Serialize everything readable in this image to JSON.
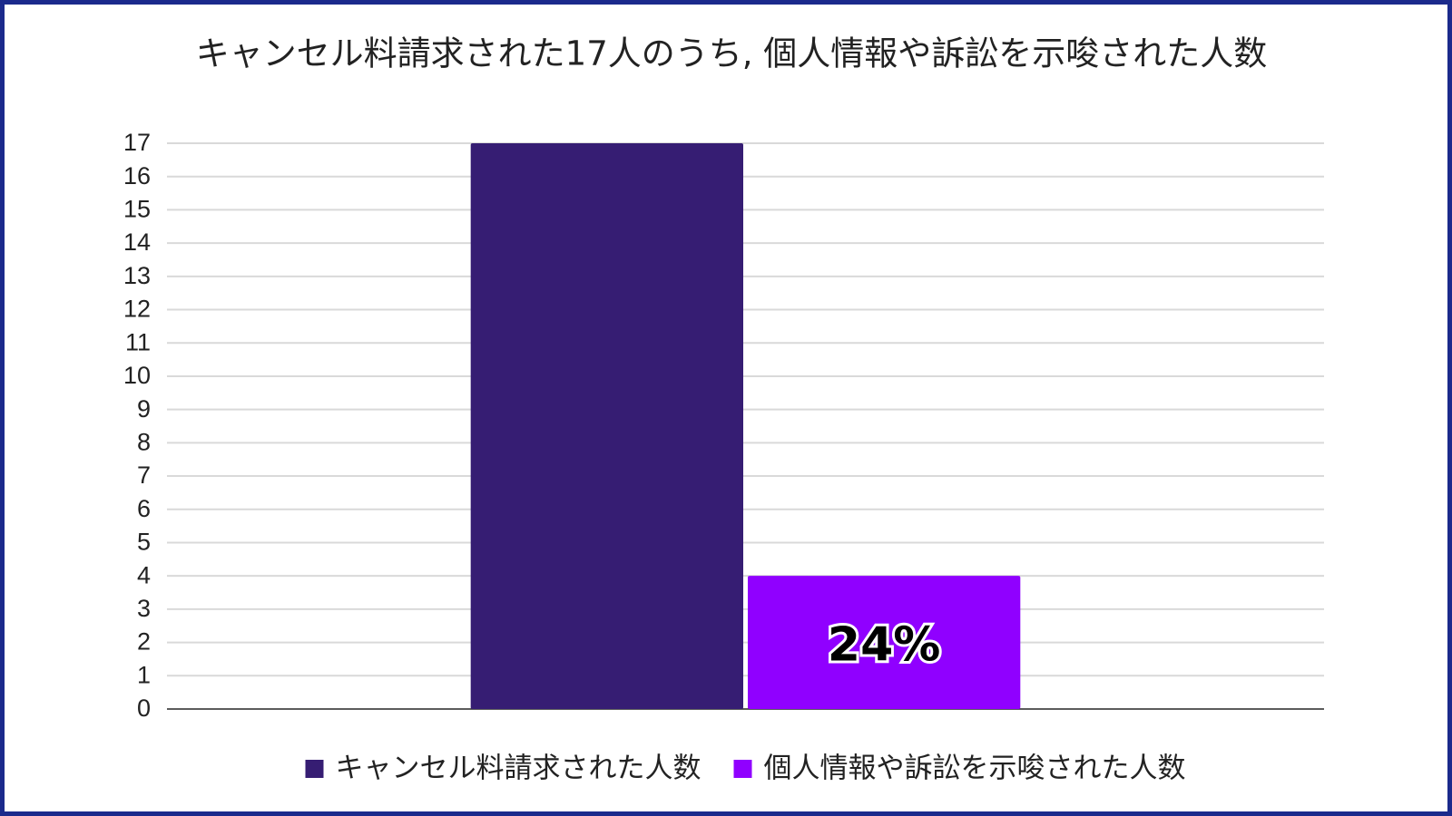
{
  "chart_data": {
    "type": "bar",
    "title": "キャンセル料請求された17人のうち, 個人情報や訴訟を示唆された人数",
    "categories": [
      null
    ],
    "series": [
      {
        "name": "キャンセル料請求された人数",
        "color": "#361d73",
        "values": [
          17
        ]
      },
      {
        "name": "個人情報や訴訟を示唆された人数",
        "color": "#9000ff",
        "values": [
          4
        ]
      }
    ],
    "annotation": "24%",
    "ylim": [
      0,
      17
    ],
    "yticks": [
      0,
      1,
      2,
      3,
      4,
      5,
      6,
      7,
      8,
      9,
      10,
      11,
      12,
      13,
      14,
      15,
      16,
      17
    ],
    "grid": true,
    "legend": "bottom"
  }
}
